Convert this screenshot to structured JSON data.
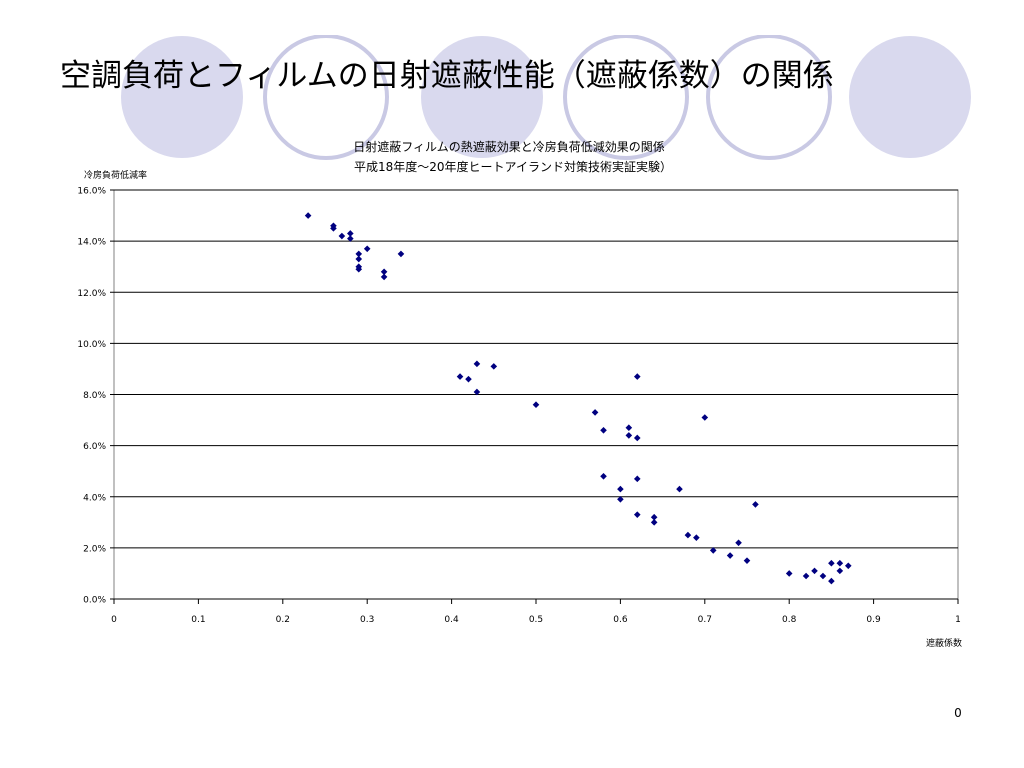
{
  "slide": {
    "title": "空調負荷とフィルムの日射遮蔽性能（遮蔽係数）の関係",
    "page_number": "0"
  },
  "theme": {
    "circle_fill": "#d9d9ee",
    "circle_stroke": "#c9c9e4",
    "marker_color": "#000080",
    "gridline_color": "#000000"
  },
  "chart_data": {
    "type": "scatter",
    "title": "日射遮蔽フィルムの熱遮蔽効果と冷房負荷低減効果の関係",
    "subtitle": "平成18年度～20年度ヒートアイランド対策技術実証実験）",
    "xlabel": "遮蔽係数",
    "ylabel": "冷房負荷低減率",
    "xlim": [
      0,
      1
    ],
    "ylim": [
      0,
      0.16
    ],
    "x_ticks": [
      "0",
      "0.1",
      "0.2",
      "0.3",
      "0.4",
      "0.5",
      "0.6",
      "0.7",
      "0.8",
      "0.9",
      "1"
    ],
    "y_ticks": [
      "0.0%",
      "2.0%",
      "4.0%",
      "6.0%",
      "8.0%",
      "10.0%",
      "12.0%",
      "14.0%",
      "16.0%"
    ],
    "grid": "horizontal",
    "marker": "diamond",
    "points": [
      [
        0.23,
        0.15
      ],
      [
        0.26,
        0.146
      ],
      [
        0.26,
        0.145
      ],
      [
        0.27,
        0.142
      ],
      [
        0.28,
        0.143
      ],
      [
        0.28,
        0.141
      ],
      [
        0.29,
        0.135
      ],
      [
        0.29,
        0.133
      ],
      [
        0.29,
        0.13
      ],
      [
        0.29,
        0.129
      ],
      [
        0.3,
        0.137
      ],
      [
        0.32,
        0.128
      ],
      [
        0.32,
        0.126
      ],
      [
        0.34,
        0.135
      ],
      [
        0.41,
        0.087
      ],
      [
        0.42,
        0.086
      ],
      [
        0.43,
        0.092
      ],
      [
        0.43,
        0.081
      ],
      [
        0.45,
        0.091
      ],
      [
        0.5,
        0.076
      ],
      [
        0.57,
        0.073
      ],
      [
        0.58,
        0.066
      ],
      [
        0.58,
        0.048
      ],
      [
        0.6,
        0.043
      ],
      [
        0.6,
        0.039
      ],
      [
        0.61,
        0.067
      ],
      [
        0.61,
        0.064
      ],
      [
        0.62,
        0.087
      ],
      [
        0.62,
        0.063
      ],
      [
        0.62,
        0.047
      ],
      [
        0.62,
        0.033
      ],
      [
        0.64,
        0.032
      ],
      [
        0.64,
        0.03
      ],
      [
        0.67,
        0.043
      ],
      [
        0.68,
        0.025
      ],
      [
        0.69,
        0.024
      ],
      [
        0.7,
        0.071
      ],
      [
        0.71,
        0.019
      ],
      [
        0.73,
        0.017
      ],
      [
        0.74,
        0.022
      ],
      [
        0.75,
        0.015
      ],
      [
        0.76,
        0.037
      ],
      [
        0.8,
        0.01
      ],
      [
        0.82,
        0.009
      ],
      [
        0.83,
        0.011
      ],
      [
        0.84,
        0.009
      ],
      [
        0.85,
        0.014
      ],
      [
        0.85,
        0.007
      ],
      [
        0.86,
        0.014
      ],
      [
        0.86,
        0.011
      ],
      [
        0.87,
        0.013
      ]
    ]
  }
}
